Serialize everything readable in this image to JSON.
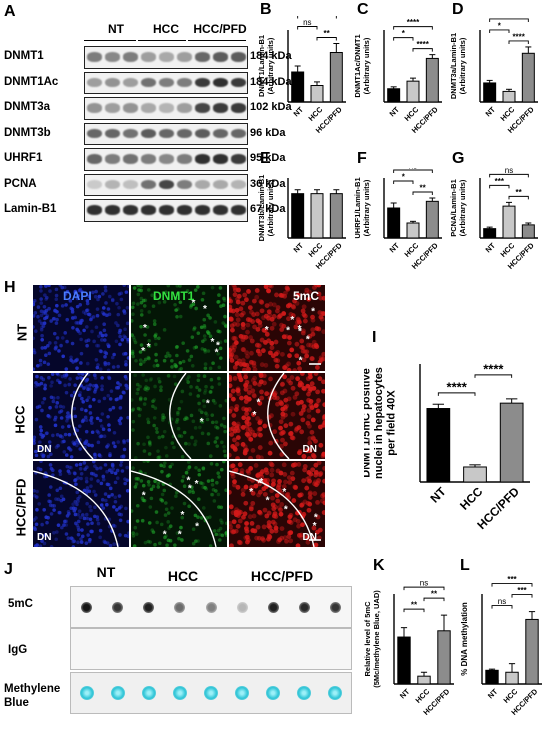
{
  "panels": {
    "A": "A",
    "B": "B",
    "C": "C",
    "D": "D",
    "E": "E",
    "F": "F",
    "G": "G",
    "H": "H",
    "I": "I",
    "J": "J",
    "K": "K",
    "L": "L"
  },
  "blot": {
    "groups": [
      "NT",
      "HCC",
      "HCC/PFD"
    ],
    "rows": [
      {
        "protein": "DNMT1",
        "kda": "184 kDa",
        "intensity": [
          0.5,
          0.45,
          0.5,
          0.35,
          0.3,
          0.35,
          0.6,
          0.65,
          0.65
        ]
      },
      {
        "protein": "DNMT1Ac",
        "kda": "184 kDa",
        "intensity": [
          0.35,
          0.4,
          0.35,
          0.55,
          0.5,
          0.5,
          0.8,
          0.85,
          0.8
        ]
      },
      {
        "protein": "DNMT3a",
        "kda": "102 kDa",
        "intensity": [
          0.4,
          0.35,
          0.4,
          0.3,
          0.25,
          0.35,
          0.75,
          0.8,
          0.8
        ]
      },
      {
        "protein": "DNMT3b",
        "kda": "96 kDa",
        "intensity": [
          0.6,
          0.6,
          0.55,
          0.65,
          0.6,
          0.6,
          0.65,
          0.6,
          0.6
        ]
      },
      {
        "protein": "UHRF1",
        "kda": "95 kDa",
        "intensity": [
          0.6,
          0.5,
          0.55,
          0.5,
          0.45,
          0.5,
          0.85,
          0.85,
          0.8
        ]
      },
      {
        "protein": "PCNA",
        "kda": "36 kDa",
        "intensity": [
          0.15,
          0.25,
          0.2,
          0.55,
          0.75,
          0.5,
          0.3,
          0.3,
          0.25
        ]
      },
      {
        "protein": "Lamin-B1",
        "kda": "67 kDa",
        "intensity": [
          0.85,
          0.85,
          0.85,
          0.85,
          0.85,
          0.85,
          0.85,
          0.85,
          0.85
        ]
      }
    ]
  },
  "chart_data": [
    {
      "id": "B",
      "type": "bar",
      "categories": [
        "NT",
        "HCC",
        "HCC/PFD"
      ],
      "values": [
        1.0,
        0.55,
        1.65
      ],
      "errors": [
        0.2,
        0.12,
        0.3
      ],
      "ylabel": "DNMT1/Lamin-B1\n(Arbitrary units)",
      "ylim": [
        0,
        2.4
      ],
      "colors": [
        "#000000",
        "#c8c8c8",
        "#8c8c8c"
      ],
      "significance": [
        {
          "from": 1,
          "to": 2,
          "label": "**"
        },
        {
          "from": 0,
          "to": 1,
          "label": "ns"
        },
        {
          "from": 0,
          "to": 2,
          "label": "*"
        }
      ]
    },
    {
      "id": "C",
      "type": "bar",
      "categories": [
        "NT",
        "HCC",
        "HCC/PFD"
      ],
      "values": [
        0.35,
        0.55,
        1.15
      ],
      "errors": [
        0.05,
        0.08,
        0.1
      ],
      "ylabel": "DNMT1Ac/DNMT1\n(Arbitrary units)",
      "ylim": [
        0,
        1.9
      ],
      "colors": [
        "#000000",
        "#c8c8c8",
        "#8c8c8c"
      ],
      "significance": [
        {
          "from": 1,
          "to": 2,
          "label": "****"
        },
        {
          "from": 0,
          "to": 1,
          "label": "*"
        },
        {
          "from": 0,
          "to": 2,
          "label": "****"
        }
      ]
    },
    {
      "id": "D",
      "type": "bar",
      "categories": [
        "NT",
        "HCC",
        "HCC/PFD"
      ],
      "values": [
        0.45,
        0.25,
        1.15
      ],
      "errors": [
        0.06,
        0.05,
        0.15
      ],
      "ylabel": "DNMT3a/Lamin-B1\n(Arbitrary units)",
      "ylim": [
        0,
        1.7
      ],
      "colors": [
        "#000000",
        "#c8c8c8",
        "#8c8c8c"
      ],
      "significance": [
        {
          "from": 1,
          "to": 2,
          "label": "****"
        },
        {
          "from": 0,
          "to": 1,
          "label": "*"
        },
        {
          "from": 0,
          "to": 2,
          "label": "***"
        }
      ]
    },
    {
      "id": "E",
      "type": "bar",
      "categories": [
        "NT",
        "HCC",
        "HCC/PFD"
      ],
      "values": [
        1.7,
        1.7,
        1.7
      ],
      "errors": [
        0.15,
        0.15,
        0.15
      ],
      "ylabel": "DNMT3b/Lamin-B1\n(Arbitrary units)",
      "ylim": [
        0,
        2.3
      ],
      "colors": [
        "#000000",
        "#c8c8c8",
        "#8c8c8c"
      ],
      "significance": []
    },
    {
      "id": "F",
      "type": "bar",
      "categories": [
        "NT",
        "HCC",
        "HCC/PFD"
      ],
      "values": [
        0.9,
        0.45,
        1.1
      ],
      "errors": [
        0.15,
        0.05,
        0.1
      ],
      "ylabel": "UHRF1/Lamin-B1\n(Arbitrary units)",
      "ylim": [
        0,
        1.8
      ],
      "colors": [
        "#000000",
        "#c8c8c8",
        "#8c8c8c"
      ],
      "significance": [
        {
          "from": 1,
          "to": 2,
          "label": "**"
        },
        {
          "from": 0,
          "to": 1,
          "label": "*"
        },
        {
          "from": 0,
          "to": 2,
          "label": "ns"
        }
      ]
    },
    {
      "id": "G",
      "type": "bar",
      "categories": [
        "NT",
        "HCC",
        "HCC/PFD"
      ],
      "values": [
        0.25,
        0.85,
        0.35
      ],
      "errors": [
        0.04,
        0.1,
        0.05
      ],
      "ylabel": "PCNA/Lamin-B1\n(Arbitrary units)",
      "ylim": [
        0,
        1.6
      ],
      "colors": [
        "#000000",
        "#c8c8c8",
        "#8c8c8c"
      ],
      "significance": [
        {
          "from": 1,
          "to": 2,
          "label": "**"
        },
        {
          "from": 0,
          "to": 1,
          "label": "***"
        },
        {
          "from": 0,
          "to": 2,
          "label": "ns"
        }
      ]
    },
    {
      "id": "I",
      "type": "bar",
      "categories": [
        "NT",
        "HCC",
        "HCC/PFD"
      ],
      "values": [
        137,
        28,
        147
      ],
      "errors": [
        8,
        4,
        8
      ],
      "ylabel": "DNMT1/5mC positive\nnuclei in hepatocytes\nper field 40X",
      "ylim": [
        0,
        220
      ],
      "colors": [
        "#000000",
        "#c8c8c8",
        "#8c8c8c"
      ],
      "significance": [
        {
          "from": 0,
          "to": 1,
          "label": "****"
        },
        {
          "from": 1,
          "to": 2,
          "label": "****"
        }
      ]
    },
    {
      "id": "K",
      "type": "bar",
      "categories": [
        "NT",
        "HCC",
        "HCC/PFD"
      ],
      "values": [
        0.6,
        0.1,
        0.68
      ],
      "errors": [
        0.12,
        0.05,
        0.2
      ],
      "ylabel": "Relative level of 5mC\n(5Mc/methylene Blue, UAD)",
      "ylim": [
        0,
        1.15
      ],
      "colors": [
        "#000000",
        "#c8c8c8",
        "#8c8c8c"
      ],
      "significance": [
        {
          "from": 0,
          "to": 1,
          "label": "**"
        },
        {
          "from": 1,
          "to": 2,
          "label": "**"
        },
        {
          "from": 0,
          "to": 2,
          "label": "ns"
        }
      ]
    },
    {
      "id": "L",
      "type": "bar",
      "categories": [
        "NT",
        "HCC",
        "HCC/PFD"
      ],
      "values": [
        0.35,
        0.3,
        1.65
      ],
      "errors": [
        0.03,
        0.22,
        0.2
      ],
      "ylabel": "% DNA methylation",
      "ylim": [
        0,
        2.3
      ],
      "colors": [
        "#000000",
        "#c8c8c8",
        "#8c8c8c"
      ],
      "significance": [
        {
          "from": 0,
          "to": 1,
          "label": "ns"
        },
        {
          "from": 1,
          "to": 2,
          "label": "***"
        },
        {
          "from": 0,
          "to": 2,
          "label": "***"
        }
      ]
    }
  ],
  "microscopy": {
    "columns": [
      "DAPI",
      "DNMT1",
      "5mC"
    ],
    "rows": [
      "NT",
      "HCC",
      "HCC/PFD"
    ],
    "dn_label": "DN",
    "colors": {
      "dapi": "#2233cc",
      "dnmt1": "#1fa52a",
      "mc": "#d41a1a"
    }
  },
  "dotblot": {
    "groups": [
      "NT",
      "HCC",
      "HCC/PFD"
    ],
    "rows": [
      "5mC",
      "IgG",
      "Methylene\nBlue"
    ],
    "intensity_5mc": [
      0.95,
      0.8,
      0.9,
      0.55,
      0.45,
      0.2,
      0.9,
      0.85,
      0.8
    ],
    "dot_color_blue": "#2ec4d6"
  }
}
